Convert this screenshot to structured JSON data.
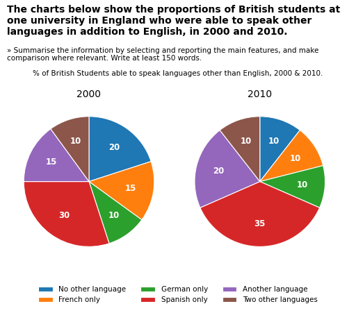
{
  "title": "The charts below show the proportions of British students at one university in England who were able to speak other languages in addition to English, in 2000 and 2010.",
  "subtitle": "» Summarise the information by selecting and reporting the main features, and make comparison where relevant. Write at least 150 words.",
  "annotations": [
    "% of British Students able to speak languages other than English, 2000 & 2010."
  ],
  "chart_data": [
    {
      "type": "pie",
      "title": "2000",
      "categories": [
        "No other language",
        "French only",
        "German only",
        "Spanish only",
        "Another language",
        "Two other languages"
      ],
      "values": [
        20,
        15,
        10,
        30,
        15,
        10
      ],
      "data_labels": true,
      "legend": "lower center"
    },
    {
      "type": "pie",
      "title": "2010",
      "categories": [
        "No other language",
        "French only",
        "German only",
        "Spanish only",
        "Another language",
        "Two other languages"
      ],
      "values": [
        10,
        10,
        10,
        35,
        20,
        10
      ],
      "data_labels": true
    }
  ]
}
